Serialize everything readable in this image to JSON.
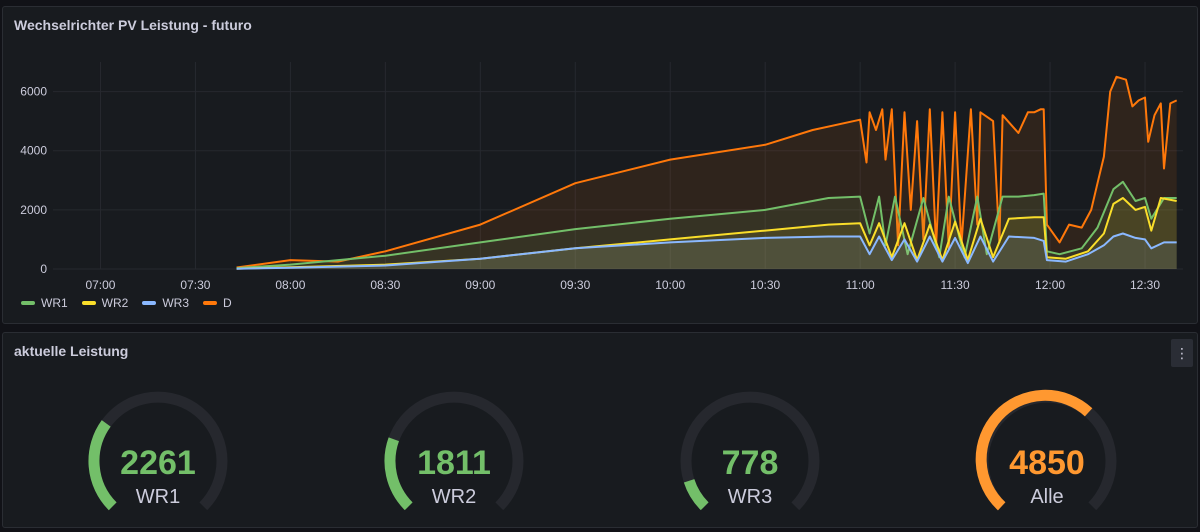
{
  "chart_panel": {
    "title": "Wechselrichter PV Leistung - futuro"
  },
  "gauge_panel": {
    "title": "aktuelle Leistung",
    "menu_icon": "vertical-ellipsis-icon",
    "gauges": [
      {
        "label": "WR1",
        "value": 2261,
        "fraction": 0.3,
        "color": "#73bf69"
      },
      {
        "label": "WR2",
        "value": 1811,
        "fraction": 0.24,
        "color": "#73bf69"
      },
      {
        "label": "WR3",
        "value": 778,
        "fraction": 0.1,
        "color": "#73bf69"
      },
      {
        "label": "Alle",
        "value": 4850,
        "fraction": 0.65,
        "color": "#ff9830"
      }
    ]
  },
  "chart_data": {
    "type": "area",
    "title": "Wechselrichter PV Leistung - futuro",
    "x_tick_labels": [
      "07:00",
      "07:30",
      "08:00",
      "08:30",
      "09:00",
      "09:30",
      "10:00",
      "10:30",
      "11:00",
      "11:30",
      "12:00",
      "12:30"
    ],
    "x_range": [
      "06:45",
      "12:42"
    ],
    "y_ticks": [
      0,
      2000,
      4000,
      6000
    ],
    "ylim": [
      0,
      7000
    ],
    "grid": true,
    "legend_position": "bottom-left",
    "series": [
      {
        "name": "WR1",
        "color": "#73bf69",
        "points": [
          [
            "07:43",
            30
          ],
          [
            "08:00",
            150
          ],
          [
            "08:30",
            450
          ],
          [
            "09:00",
            900
          ],
          [
            "09:30",
            1350
          ],
          [
            "10:00",
            1700
          ],
          [
            "10:30",
            2000
          ],
          [
            "10:50",
            2400
          ],
          [
            "11:00",
            2450
          ],
          [
            "11:03",
            1200
          ],
          [
            "11:06",
            2450
          ],
          [
            "11:08",
            800
          ],
          [
            "11:11",
            2450
          ],
          [
            "11:15",
            500
          ],
          [
            "11:20",
            2400
          ],
          [
            "11:25",
            400
          ],
          [
            "11:28",
            2450
          ],
          [
            "11:33",
            400
          ],
          [
            "11:37",
            2450
          ],
          [
            "11:40",
            500
          ],
          [
            "11:45",
            2450
          ],
          [
            "11:50",
            2450
          ],
          [
            "11:55",
            2500
          ],
          [
            "11:58",
            2550
          ],
          [
            "11:59",
            600
          ],
          [
            "12:03",
            500
          ],
          [
            "12:10",
            700
          ],
          [
            "12:15",
            1400
          ],
          [
            "12:20",
            2700
          ],
          [
            "12:23",
            2950
          ],
          [
            "12:27",
            2300
          ],
          [
            "12:30",
            2400
          ],
          [
            "12:32",
            1700
          ],
          [
            "12:36",
            2400
          ],
          [
            "12:40",
            2400
          ]
        ]
      },
      {
        "name": "WR2",
        "color": "#fade2a",
        "points": [
          [
            "07:43",
            10
          ],
          [
            "08:00",
            60
          ],
          [
            "08:30",
            150
          ],
          [
            "09:00",
            350
          ],
          [
            "09:30",
            700
          ],
          [
            "10:00",
            1000
          ],
          [
            "10:30",
            1300
          ],
          [
            "10:50",
            1500
          ],
          [
            "11:00",
            1550
          ],
          [
            "11:03",
            800
          ],
          [
            "11:06",
            1550
          ],
          [
            "11:10",
            400
          ],
          [
            "11:14",
            1550
          ],
          [
            "11:18",
            300
          ],
          [
            "11:22",
            1500
          ],
          [
            "11:26",
            300
          ],
          [
            "11:30",
            1600
          ],
          [
            "11:34",
            300
          ],
          [
            "11:38",
            1700
          ],
          [
            "11:42",
            400
          ],
          [
            "11:47",
            1700
          ],
          [
            "11:55",
            1750
          ],
          [
            "11:58",
            1750
          ],
          [
            "11:59",
            400
          ],
          [
            "12:05",
            350
          ],
          [
            "12:12",
            600
          ],
          [
            "12:17",
            1200
          ],
          [
            "12:20",
            2200
          ],
          [
            "12:23",
            2400
          ],
          [
            "12:27",
            2000
          ],
          [
            "12:30",
            2100
          ],
          [
            "12:32",
            1300
          ],
          [
            "12:35",
            2400
          ],
          [
            "12:40",
            2300
          ]
        ]
      },
      {
        "name": "WR3",
        "color": "#8ab8ff",
        "points": [
          [
            "07:43",
            10
          ],
          [
            "08:00",
            40
          ],
          [
            "08:30",
            120
          ],
          [
            "09:00",
            350
          ],
          [
            "09:30",
            700
          ],
          [
            "10:00",
            900
          ],
          [
            "10:30",
            1050
          ],
          [
            "10:50",
            1100
          ],
          [
            "11:00",
            1100
          ],
          [
            "11:03",
            500
          ],
          [
            "11:06",
            1100
          ],
          [
            "11:10",
            300
          ],
          [
            "11:14",
            1000
          ],
          [
            "11:18",
            250
          ],
          [
            "11:22",
            1100
          ],
          [
            "11:26",
            250
          ],
          [
            "11:30",
            1050
          ],
          [
            "11:34",
            200
          ],
          [
            "11:38",
            1100
          ],
          [
            "11:42",
            250
          ],
          [
            "11:47",
            1100
          ],
          [
            "11:55",
            1050
          ],
          [
            "11:58",
            950
          ],
          [
            "11:59",
            300
          ],
          [
            "12:05",
            250
          ],
          [
            "12:12",
            500
          ],
          [
            "12:17",
            800
          ],
          [
            "12:20",
            1100
          ],
          [
            "12:23",
            1200
          ],
          [
            "12:27",
            1050
          ],
          [
            "12:30",
            1000
          ],
          [
            "12:32",
            700
          ],
          [
            "12:36",
            900
          ],
          [
            "12:40",
            900
          ]
        ]
      },
      {
        "name": "D",
        "color": "#ff780a",
        "points": [
          [
            "07:43",
            50
          ],
          [
            "08:00",
            300
          ],
          [
            "08:15",
            250
          ],
          [
            "08:30",
            600
          ],
          [
            "09:00",
            1500
          ],
          [
            "09:30",
            2900
          ],
          [
            "10:00",
            3700
          ],
          [
            "10:30",
            4200
          ],
          [
            "10:45",
            4700
          ],
          [
            "11:00",
            5050
          ],
          [
            "11:02",
            3600
          ],
          [
            "11:03",
            5300
          ],
          [
            "11:05",
            4700
          ],
          [
            "11:07",
            5400
          ],
          [
            "11:08",
            3700
          ],
          [
            "11:10",
            5400
          ],
          [
            "11:12",
            800
          ],
          [
            "11:14",
            5300
          ],
          [
            "11:16",
            2000
          ],
          [
            "11:18",
            5000
          ],
          [
            "11:20",
            1000
          ],
          [
            "11:22",
            5400
          ],
          [
            "11:24",
            800
          ],
          [
            "11:26",
            5300
          ],
          [
            "11:28",
            700
          ],
          [
            "11:30",
            5300
          ],
          [
            "11:32",
            800
          ],
          [
            "11:35",
            5400
          ],
          [
            "11:37",
            1500
          ],
          [
            "11:38",
            5300
          ],
          [
            "11:42",
            5000
          ],
          [
            "11:44",
            900
          ],
          [
            "11:45",
            5200
          ],
          [
            "11:50",
            4600
          ],
          [
            "11:53",
            5300
          ],
          [
            "11:55",
            5300
          ],
          [
            "11:57",
            5400
          ],
          [
            "11:58",
            5400
          ],
          [
            "11:59",
            1500
          ],
          [
            "12:03",
            900
          ],
          [
            "12:06",
            1500
          ],
          [
            "12:10",
            1400
          ],
          [
            "12:13",
            2000
          ],
          [
            "12:15",
            2900
          ],
          [
            "12:17",
            3800
          ],
          [
            "12:19",
            6000
          ],
          [
            "12:21",
            6500
          ],
          [
            "12:24",
            6400
          ],
          [
            "12:26",
            5500
          ],
          [
            "12:28",
            5700
          ],
          [
            "12:30",
            5800
          ],
          [
            "12:31",
            4300
          ],
          [
            "12:33",
            5200
          ],
          [
            "12:35",
            5600
          ],
          [
            "12:36",
            3400
          ],
          [
            "12:38",
            5600
          ],
          [
            "12:40",
            5700
          ]
        ]
      }
    ]
  }
}
